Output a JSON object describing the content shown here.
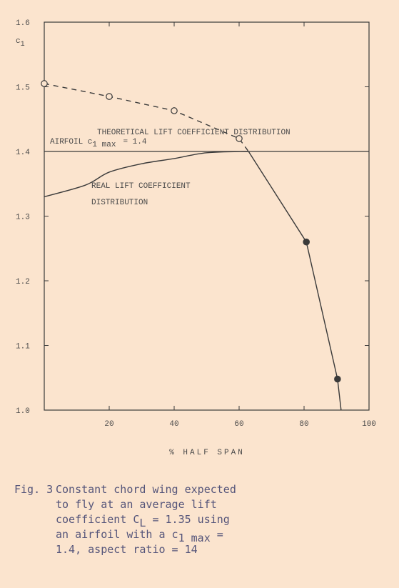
{
  "chart_data": {
    "type": "line",
    "xlabel": "% HALF SPAN",
    "ylabel": "c",
    "ylabel_sub": "1",
    "xlim": [
      0,
      100
    ],
    "ylim": [
      1,
      1.6
    ],
    "xticks": [
      20,
      40,
      60,
      80,
      100
    ],
    "yticks": [
      {
        "value": 1,
        "label": "1.0"
      },
      1.1,
      1.2,
      1.3,
      1.4,
      1.5,
      1.6
    ],
    "color": "#3a3a3a",
    "reference_line": {
      "value": 1.4,
      "label": "AIRFOIL c",
      "label_sub": "1 max",
      "label_rest": "= 1.4"
    },
    "series": [
      {
        "x": [
          0,
          20,
          40,
          60,
          62.9
        ],
        "values": [
          1.505,
          1.485,
          1.463,
          1.42,
          1.4
        ],
        "style": "dashed",
        "marker": "open",
        "marker_indices": [
          0,
          1,
          2,
          3
        ]
      },
      {
        "x": [
          62.9,
          80.7,
          90.3,
          91.4
        ],
        "values": [
          1.4,
          1.26,
          1.048,
          1.0
        ],
        "style": "solid",
        "marker": "filled",
        "marker_indices": [
          1,
          2
        ]
      },
      {
        "x": [
          0,
          12.7,
          20,
          30,
          40,
          50,
          62.9
        ],
        "values": [
          1.33,
          1.348,
          1.368,
          1.381,
          1.389,
          1.398,
          1.4
        ],
        "style": "solid",
        "smooth": true
      }
    ],
    "annotations": [
      {
        "lines": [
          "THEORETICAL LIFT COEFFICIENT DISTRIBUTION"
        ]
      },
      {
        "lines": [
          "REAL LIFT COEFFICIENT",
          "DISTRIBUTION"
        ]
      }
    ],
    "caption": {
      "figure": "Fig. 3",
      "lines": [
        [
          {
            "text": "Constant chord wing expected"
          }
        ],
        [
          {
            "text": "to fly at an average lift"
          }
        ],
        [
          {
            "text": "coefficient C"
          },
          {
            "text": "L",
            "sub": true
          },
          {
            "text": " = 1.35 using"
          }
        ],
        [
          {
            "text": "an airfoil with a c"
          },
          {
            "text": "1 max",
            "sub": true
          },
          {
            "text": " ="
          }
        ],
        [
          {
            "text": "1.4, aspect ratio = 14"
          }
        ]
      ]
    }
  }
}
